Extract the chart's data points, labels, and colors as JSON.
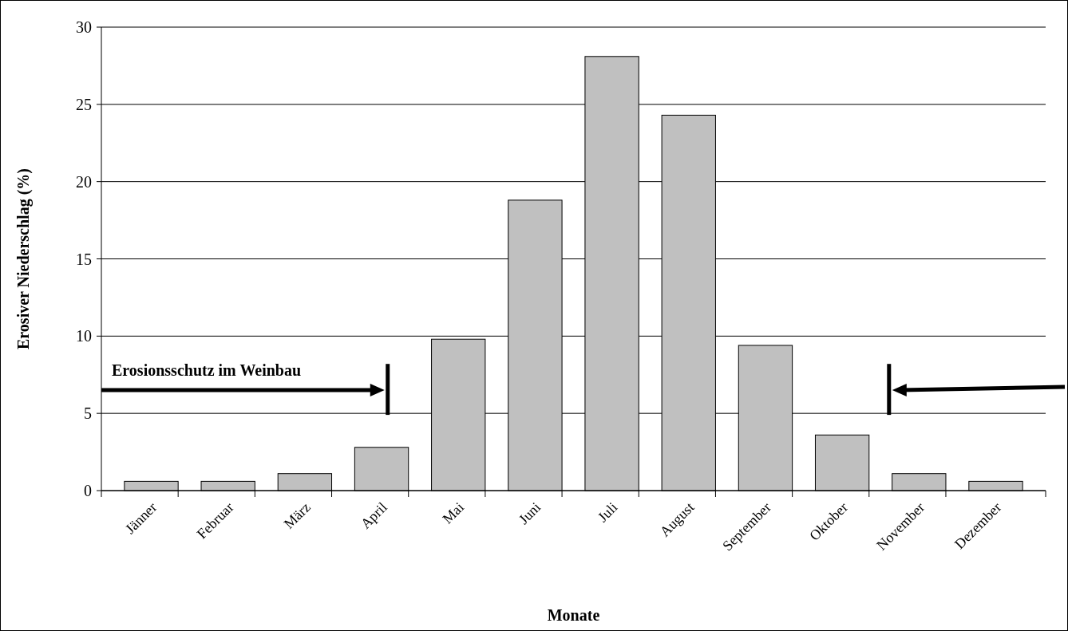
{
  "chart_data": {
    "type": "bar",
    "xlabel": "Monate",
    "ylabel": "Erosiver Niederschlag (%)",
    "categories": [
      "Jänner",
      "Februar",
      "März",
      "April",
      "Mai",
      "Juni",
      "Juli",
      "August",
      "September",
      "Oktober",
      "November",
      "Dezember"
    ],
    "values": [
      0.6,
      0.6,
      1.1,
      2.8,
      9.8,
      18.8,
      28.1,
      24.3,
      9.4,
      3.6,
      1.1,
      0.6
    ],
    "color": "#c0c0c0",
    "ylim": [
      0,
      30
    ],
    "yticks": [
      0,
      5,
      10,
      15,
      20,
      25,
      30
    ],
    "grid": "y",
    "annotations": [
      "Erosionsschutz im Weinbau"
    ]
  }
}
